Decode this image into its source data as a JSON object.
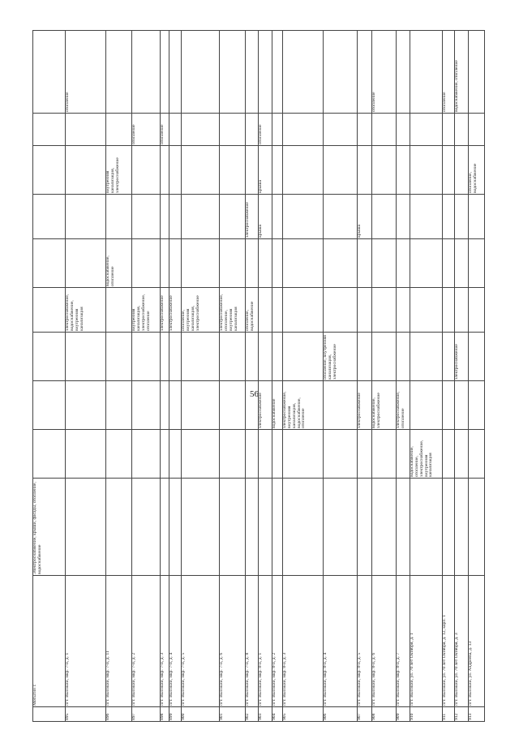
{
  "page_number": "56",
  "table": {
    "header": [
      null,
      "Мотыгин г.",
      "Электроснабжение, крыши, фасады, отопление, водоснабжение",
      null,
      null,
      null,
      null,
      null,
      null,
      null,
      null,
      null
    ],
    "rows": [
      [
        "895",
        "пгт. Высокий, мкр. 7-й, д. 1",
        null,
        null,
        null,
        null,
        "электроснабжение, водоснабжение, внутренняя канализация",
        null,
        null,
        null,
        null,
        "отопление"
      ],
      [
        "896",
        "пгт. Высокий, мкр. 7-й, д. 11",
        null,
        null,
        null,
        null,
        null,
        "водоснабжение, отопление",
        null,
        "внутренняя канализация, электроснабжение",
        null,
        null
      ],
      [
        "897",
        "пгт. Высокий, мкр. 7-й, д. 2",
        null,
        null,
        null,
        null,
        "внутренняя канализация, электроснабжение, отопление",
        null,
        null,
        null,
        "отопление",
        null
      ],
      [
        "898",
        "пгт. Высокий, мкр. 7-й, д. 3",
        null,
        null,
        null,
        null,
        "электроснабжение",
        null,
        null,
        null,
        "отопление",
        null
      ],
      [
        "899",
        "пгт. Высокий, мкр. 7-й, д. 4",
        null,
        null,
        null,
        null,
        "электроснабжение",
        null,
        null,
        null,
        null,
        null
      ],
      [
        "900",
        "пгт. Высокий, мкр. 7-й, д. 5",
        null,
        null,
        null,
        null,
        "отопление, внутренняя канализация, электроснабжение",
        null,
        null,
        null,
        null,
        null
      ],
      [
        "901",
        "пгт. Высокий, мкр. 7-й, д. 6",
        null,
        null,
        null,
        null,
        "электроснабжение, отопление, внутренняя канализация",
        null,
        null,
        null,
        null,
        null
      ],
      [
        "902",
        "пгт. Высокий, мкр. 7-й, д. 8",
        null,
        null,
        null,
        null,
        "отопление, водоснабжение",
        null,
        "электроснабжение",
        null,
        null,
        null
      ],
      [
        "903",
        "пгт. Высокий, мкр. 8-й, д. 1",
        null,
        null,
        "электроснабжение",
        null,
        null,
        null,
        "крыша",
        "крыша",
        "отопление",
        null
      ],
      [
        "904",
        "пгт. Высокий, мкр. 8-й, д. 2",
        null,
        null,
        "водоснабжение",
        null,
        null,
        null,
        null,
        null,
        null,
        null
      ],
      [
        "905",
        "пгт. Высокий, мкр. 8-й, д. 3",
        null,
        null,
        "электроснабжение, внутренняя канализация, водоснабжение, отопление",
        null,
        null,
        null,
        null,
        null,
        null,
        null
      ],
      [
        "906",
        "пгт. Высокий, мкр. 8-й, д. 4",
        null,
        null,
        null,
        "отопление, внутренняя канализация, электроснабжение",
        null,
        null,
        null,
        null,
        null,
        null
      ],
      [
        "907",
        "пгт. Высокий, мкр. 8-й, д. 5",
        null,
        null,
        "электроснабжение",
        null,
        null,
        null,
        "крыша",
        null,
        null,
        null
      ],
      [
        "908",
        "пгт. Высокий, мкр. 8-й, д. 6",
        null,
        null,
        "водоснабжение, электроснабжение",
        null,
        null,
        null,
        null,
        null,
        null,
        "отопление"
      ],
      [
        "909",
        "пгт. Высокий, мкр. 8-й, д. 7",
        null,
        null,
        "электроснабжение, отопление",
        null,
        null,
        null,
        null,
        null,
        null,
        null
      ],
      [
        "910",
        "пгт. Высокий, ул. 70 лет Октября, д. 1",
        null,
        "водоснабжение, отопление, электроснабжение, внутренняя канализация",
        null,
        null,
        null,
        null,
        null,
        null,
        null,
        null
      ],
      [
        "911",
        "пгт. Высокий, ул. 70 лет Октября, д. 12, корп. 1",
        null,
        null,
        null,
        null,
        null,
        null,
        null,
        null,
        null,
        "отопление"
      ],
      [
        "912",
        "пгт. Высокий, ул. 70 лет Октября, д. 3",
        null,
        null,
        null,
        "электроснабжение",
        null,
        null,
        null,
        null,
        null,
        "водоснабжение, отопление"
      ],
      [
        "913",
        "пгт. Высокий, ул. Андреева, д. 13",
        null,
        null,
        null,
        null,
        null,
        null,
        null,
        "отопление, водоснабжение",
        null,
        null
      ]
    ]
  }
}
